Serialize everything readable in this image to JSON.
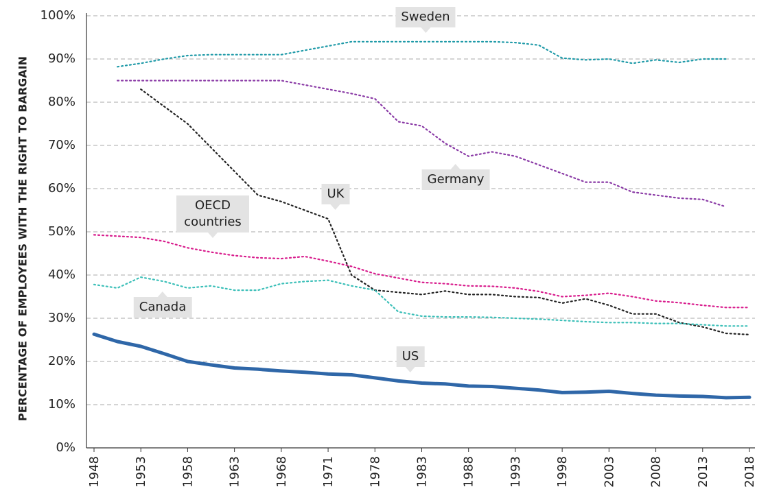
{
  "chart_data": {
    "type": "line",
    "y_label": "PERCENTAGE OF EMPLOYEES WITH THE RIGHT TO BARGAIN",
    "categories": [
      "1948",
      null,
      "1953",
      null,
      "1958",
      null,
      "1963",
      null,
      "1968",
      null,
      "1971",
      null,
      "1978",
      null,
      "1983",
      null,
      "1988",
      null,
      "1993",
      null,
      "1998",
      null,
      "2003",
      null,
      "2008",
      null,
      "2013",
      null,
      "2018"
    ],
    "ylim": [
      0,
      100
    ],
    "yticks": [
      {
        "value": 0,
        "label": "0%"
      },
      {
        "value": 10,
        "label": "10%"
      },
      {
        "value": 20,
        "label": "20%"
      },
      {
        "value": 30,
        "label": "30%"
      },
      {
        "value": 40,
        "label": "40%"
      },
      {
        "value": 50,
        "label": "50%"
      },
      {
        "value": 60,
        "label": "60%"
      },
      {
        "value": 70,
        "label": "70%"
      },
      {
        "value": 80,
        "label": "80%"
      },
      {
        "value": 90,
        "label": "90%"
      },
      {
        "value": 100,
        "label": "100%"
      }
    ],
    "grid": true,
    "series": [
      {
        "name": "Sweden",
        "color": "#1f9aa8",
        "style": "dotted",
        "values": [
          null,
          88.2,
          89,
          90,
          90.8,
          91,
          91,
          91,
          91,
          92,
          93,
          94,
          94,
          94,
          94,
          94,
          94,
          94,
          93.8,
          93.2,
          90.2,
          89.8,
          90,
          89,
          89.8,
          89.2,
          90,
          90,
          null
        ]
      },
      {
        "name": "Germany",
        "color": "#8a3aa6",
        "style": "dotted",
        "values": [
          null,
          85,
          85,
          85,
          85,
          85,
          85,
          85,
          85,
          84,
          83,
          82,
          80.8,
          75.5,
          74.5,
          70.5,
          67.5,
          68.5,
          67.5,
          65.5,
          63.5,
          61.5,
          61.5,
          59.2,
          58.5,
          57.8,
          57.5,
          55.8,
          null
        ]
      },
      {
        "name": "UK",
        "color": "#222222",
        "style": "dotted",
        "values": [
          null,
          null,
          83,
          79,
          75,
          69.5,
          64,
          58.5,
          57,
          55,
          53,
          40,
          36.5,
          36,
          35.5,
          36.3,
          35.5,
          35.5,
          35,
          34.8,
          33.5,
          34.5,
          33,
          31,
          31,
          29,
          28,
          26.5,
          26.2
        ]
      },
      {
        "name": "OECD countries",
        "color": "#d81b8c",
        "style": "dotted",
        "values": [
          49.3,
          49,
          48.7,
          47.8,
          46.3,
          45.3,
          44.5,
          44,
          43.8,
          44.3,
          43.2,
          42,
          40.3,
          39.3,
          38.3,
          38,
          37.5,
          37.4,
          37,
          36.2,
          35,
          35.3,
          35.8,
          35,
          34,
          33.6,
          33,
          32.5,
          32.5
        ]
      },
      {
        "name": "Canada",
        "color": "#3bbfb8",
        "style": "dotted",
        "values": [
          37.8,
          37,
          39.5,
          38.5,
          37,
          37.5,
          36.5,
          36.5,
          38,
          38.5,
          38.8,
          37.5,
          36.5,
          31.5,
          30.5,
          30.3,
          30.3,
          30.2,
          30,
          29.8,
          29.5,
          29.2,
          29,
          29,
          28.8,
          28.8,
          28.5,
          28.2,
          28.2
        ]
      },
      {
        "name": "US",
        "color": "#2f67a8",
        "style": "solid",
        "values": [
          26.3,
          24.6,
          23.5,
          21.8,
          20,
          19.2,
          18.5,
          18.2,
          17.8,
          17.5,
          17.1,
          16.9,
          16.2,
          15.5,
          15,
          14.8,
          14.3,
          14.2,
          13.8,
          13.4,
          12.8,
          12.9,
          13.1,
          12.6,
          12.2,
          12,
          11.9,
          11.6,
          11.7
        ]
      }
    ]
  }
}
